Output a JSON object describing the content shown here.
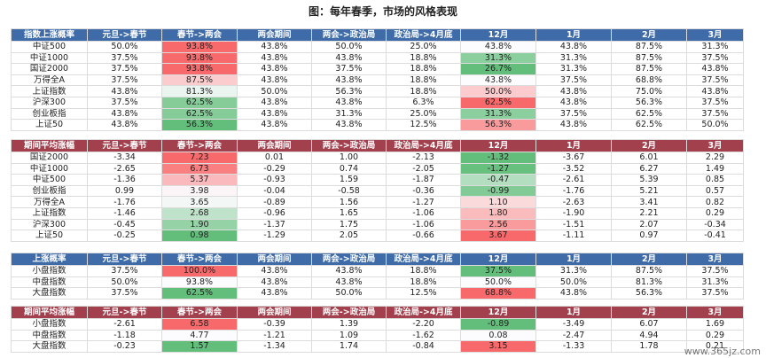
{
  "title": "图：每年春季，市场的风格表现",
  "tables": [
    {
      "header": [
        "指数上涨概率",
        "元旦->春节",
        "春节->两会",
        "两会期间",
        "两会->政治局",
        "政治局->4月底",
        "12月",
        "1月",
        "2月",
        "3月"
      ],
      "rows": [
        [
          "中证500",
          "50.0%",
          "93.8%",
          "43.8%",
          "50.0%",
          "25.0%",
          "43.8%",
          "43.8%",
          "87.5%",
          "31.3%"
        ],
        [
          "中证1000",
          "37.5%",
          "93.8%",
          "43.8%",
          "43.8%",
          "18.8%",
          "31.3%",
          "31.3%",
          "87.5%",
          "37.5%"
        ],
        [
          "国证2000",
          "37.5%",
          "93.8%",
          "43.8%",
          "37.5%",
          "18.8%",
          "26.7%",
          "31.3%",
          "87.5%",
          "43.8%"
        ],
        [
          "万得全A",
          "37.5%",
          "87.5%",
          "43.8%",
          "43.8%",
          "18.8%",
          "43.8%",
          "37.5%",
          "68.8%",
          "37.5%"
        ],
        [
          "上证指数",
          "43.8%",
          "81.3%",
          "50.0%",
          "56.3%",
          "18.8%",
          "50.0%",
          "43.8%",
          "75.0%",
          "43.8%"
        ],
        [
          "沪深300",
          "37.5%",
          "62.5%",
          "43.8%",
          "43.8%",
          "6.3%",
          "62.5%",
          "43.8%",
          "56.3%",
          "37.5%"
        ],
        [
          "创业板指",
          "43.8%",
          "62.5%",
          "43.8%",
          "31.3%",
          "25.0%",
          "31.3%",
          "37.5%",
          "62.5%",
          "37.5%"
        ],
        [
          "上证50",
          "43.8%",
          "56.3%",
          "43.8%",
          "43.8%",
          "12.5%",
          "56.3%",
          "43.8%",
          "62.5%",
          "50.0%"
        ]
      ]
    },
    {
      "header": [
        "期间平均涨幅",
        "元旦->春节",
        "春节->两会",
        "两会期间",
        "两会->政治局",
        "政治局->4月底",
        "12月",
        "1月",
        "2月",
        "3月"
      ],
      "rows": [
        [
          "国证2000",
          "-3.34",
          "7.23",
          "0.01",
          "1.00",
          "-2.13",
          "-1.32",
          "-3.67",
          "6.01",
          "2.29"
        ],
        [
          "中证1000",
          "-2.65",
          "6.73",
          "-0.29",
          "0.74",
          "-2.05",
          "-1.27",
          "-3.52",
          "6.27",
          "1.49"
        ],
        [
          "中证500",
          "-1.36",
          "5.37",
          "-0.93",
          "1.59",
          "-1.87",
          "-0.47",
          "-2.61",
          "5.39",
          "0.85"
        ],
        [
          "创业板指",
          "0.99",
          "3.98",
          "-0.04",
          "-0.58",
          "-0.36",
          "-0.99",
          "-1.76",
          "5.21",
          "0.57"
        ],
        [
          "万得全A",
          "-1.76",
          "3.65",
          "-0.89",
          "1.56",
          "-1.27",
          "1.10",
          "-2.63",
          "3.41",
          "0.82"
        ],
        [
          "上证指数",
          "-1.46",
          "2.68",
          "-0.96",
          "1.65",
          "-1.06",
          "1.80",
          "-1.90",
          "2.21",
          "0.29"
        ],
        [
          "沪深300",
          "-0.45",
          "1.90",
          "-1.37",
          "1.75",
          "-1.06",
          "2.56",
          "-1.51",
          "2.07",
          "-0.34"
        ],
        [
          "上证50",
          "-0.25",
          "0.98",
          "-1.29",
          "2.05",
          "-0.66",
          "3.67",
          "-1.11",
          "0.97",
          "-0.41"
        ]
      ]
    },
    {
      "header": [
        "上涨概率",
        "元旦->春节",
        "春节->两会",
        "两会期间",
        "两会->政治局",
        "政治局->4月底",
        "12月",
        "1月",
        "2月",
        "3月"
      ],
      "rows": [
        [
          "小盘指数",
          "37.5%",
          "100.0%",
          "43.8%",
          "43.8%",
          "18.8%",
          "37.5%",
          "31.3%",
          "87.5%",
          "37.5%"
        ],
        [
          "中盘指数",
          "50.0%",
          "93.8%",
          "43.8%",
          "43.8%",
          "18.8%",
          "50.0%",
          "50.0%",
          "81.3%",
          "31.3%"
        ],
        [
          "大盘指数",
          "37.5%",
          "62.5%",
          "43.8%",
          "50.0%",
          "12.5%",
          "68.8%",
          "43.8%",
          "56.3%",
          "37.5%"
        ]
      ]
    },
    {
      "header": [
        "期间平均涨幅",
        "元旦->春节",
        "春节->两会",
        "两会期间",
        "两会->政治局",
        "政治局->4月底",
        "12月",
        "1月",
        "2月",
        "3月"
      ],
      "rows": [
        [
          "小盘指数",
          "-2.61",
          "6.58",
          "-0.39",
          "1.39",
          "-2.20",
          "-0.89",
          "-3.49",
          "6.07",
          "1.69"
        ],
        [
          "中盘指数",
          "-1.18",
          "4.77",
          "-1.21",
          "1.09",
          "-1.62",
          "0.08",
          "-2.47",
          "4.94",
          "0.29"
        ],
        [
          "大盘指数",
          "-0.23",
          "1.57",
          "-1.34",
          "1.74",
          "-0.84",
          "3.15",
          "-1.33",
          "1.78",
          "0.21"
        ]
      ]
    }
  ],
  "watermark": "www.365jz.com"
}
